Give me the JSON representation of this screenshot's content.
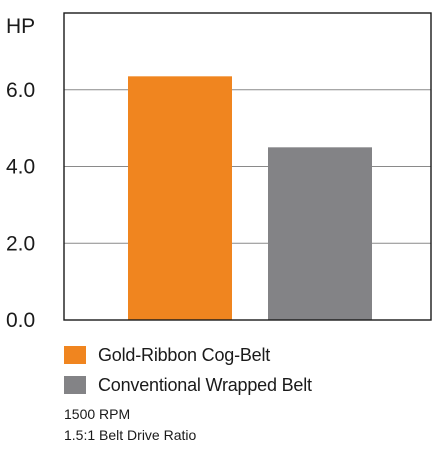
{
  "chart_data": {
    "type": "bar",
    "title": "",
    "xlabel": "",
    "ylabel": "HP",
    "ylim": [
      0,
      8
    ],
    "yticks": [
      0,
      2,
      4,
      6
    ],
    "ytick_labels": [
      "0.0",
      "2.0",
      "4.0",
      "6.0"
    ],
    "grid": true,
    "legend_position": "bottom-left",
    "series": [
      {
        "name": "Gold-Ribbon Cog-Belt",
        "value": 6.35,
        "color": "#f0851f"
      },
      {
        "name": "Conventional Wrapped Belt",
        "value": 4.5,
        "color": "#838386"
      }
    ],
    "notes": [
      "1500 RPM",
      "1.5:1 Belt Drive Ratio"
    ]
  }
}
